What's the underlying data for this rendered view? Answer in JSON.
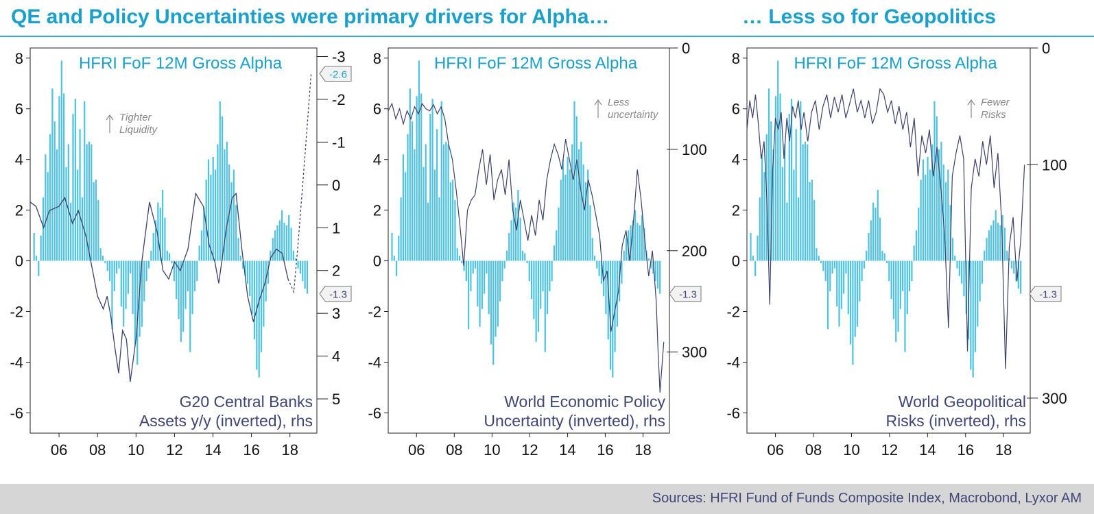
{
  "titles": {
    "left": "QE and Policy Uncertainties were primary drivers for Alpha…",
    "right": "… Less so for Geopolitics"
  },
  "source": "Sources: HFRI Fund of Funds Composite Index, Macrobond, Lyxor AM",
  "colors": {
    "bar": "#4cc3e2",
    "line": "#3b3f6b",
    "title": "#1aa0cc",
    "text": "#3f4575"
  },
  "chart_data": [
    {
      "type": "bar+line",
      "title": "HFRI FoF 12M Gross Alpha",
      "line_label_1": "G20 Central Banks",
      "line_label_2": "Assets y/y (inverted), rhs",
      "annotation_1": "Tighter",
      "annotation_2": "Liquidity",
      "x_ticks": [
        "06",
        "08",
        "10",
        "12",
        "14",
        "16",
        "18"
      ],
      "x_range": [
        2005.0,
        2019.9
      ],
      "y_left": {
        "range": [
          -6.8,
          8.4
        ],
        "ticks": [
          "8",
          "6",
          "4",
          "2",
          "0",
          "-2",
          "-4",
          "-6"
        ]
      },
      "y_right": {
        "range": [
          -3.2,
          5.8
        ],
        "inverted": true,
        "ticks": [
          "-3",
          "-2",
          "-1",
          "0",
          "1",
          "2",
          "3",
          "4",
          "5"
        ]
      },
      "callouts": [
        {
          "label": "-2.6",
          "axis": "right",
          "value": -2.6,
          "color": "#1aa0cc"
        },
        {
          "label": "-1.3",
          "axis": "left",
          "value": -1.3,
          "color": "#3f4575"
        }
      ],
      "line_dashed_from": 2018.4,
      "line_points": [
        [
          2005.0,
          0.4
        ],
        [
          2005.3,
          0.5
        ],
        [
          2005.7,
          1.0
        ],
        [
          2006.0,
          0.6
        ],
        [
          2006.5,
          0.5
        ],
        [
          2006.8,
          0.3
        ],
        [
          2007.2,
          0.9
        ],
        [
          2007.5,
          0.6
        ],
        [
          2007.9,
          1.2
        ],
        [
          2008.2,
          1.9
        ],
        [
          2008.5,
          2.6
        ],
        [
          2008.8,
          2.9
        ],
        [
          2009.0,
          2.6
        ],
        [
          2009.2,
          3.1
        ],
        [
          2009.4,
          3.8
        ],
        [
          2009.6,
          4.4
        ],
        [
          2009.8,
          3.4
        ],
        [
          2010.0,
          3.6
        ],
        [
          2010.2,
          4.6
        ],
        [
          2010.5,
          3.6
        ],
        [
          2010.8,
          1.8
        ],
        [
          2011.2,
          0.4
        ],
        [
          2011.6,
          1.1
        ],
        [
          2011.9,
          2.0
        ],
        [
          2012.2,
          2.2
        ],
        [
          2012.5,
          1.8
        ],
        [
          2012.8,
          2.0
        ],
        [
          2013.2,
          1.5
        ],
        [
          2013.6,
          0.2
        ],
        [
          2014.0,
          0.5
        ],
        [
          2014.3,
          1.4
        ],
        [
          2014.6,
          1.8
        ],
        [
          2014.8,
          2.3
        ],
        [
          2015.2,
          1.0
        ],
        [
          2015.5,
          0.3
        ],
        [
          2015.7,
          0.2
        ],
        [
          2016.0,
          1.5
        ],
        [
          2016.3,
          2.6
        ],
        [
          2016.6,
          3.2
        ],
        [
          2016.9,
          2.7
        ],
        [
          2017.2,
          2.3
        ],
        [
          2017.5,
          1.7
        ],
        [
          2017.8,
          1.5
        ],
        [
          2018.1,
          1.6
        ],
        [
          2018.4,
          2.2
        ],
        [
          2018.7,
          2.5
        ],
        [
          2018.9,
          1.5
        ],
        [
          2019.3,
          -0.8
        ],
        [
          2019.6,
          -2.6
        ]
      ],
      "bar_values": [
        1.1,
        0.2,
        -0.6,
        1.0,
        2.5,
        4.2,
        3.5,
        5.0,
        6.8,
        5.5,
        4.4,
        6.5,
        7.9,
        6.6,
        3.7,
        4.6,
        2.3,
        5.8,
        6.4,
        3.6,
        5.2,
        2.5,
        6.3,
        4.6,
        4.7,
        4.6,
        3.1,
        3.2,
        2.4,
        0.5,
        0.2,
        -0.1,
        -0.4,
        -0.8,
        -2.7,
        -1.2,
        -0.5,
        -0.3,
        -1.8,
        -2.6,
        -1.9,
        -1.3,
        -0.5,
        -2.1,
        -3.3,
        -4.1,
        -3.0,
        -2.6,
        -1.6,
        -0.8,
        -0.3,
        0.4,
        1.1,
        1.6,
        2.3,
        2.1,
        2.8,
        1.7,
        0.4,
        0.3,
        -0.1,
        -0.8,
        -1.5,
        -2.3,
        -3.2,
        -2.8,
        -1.9,
        -1.2,
        -3.6,
        -2.1,
        -1.2,
        -0.8,
        0.6,
        1.2,
        2.1,
        3.2,
        4.0,
        3.4,
        4.1,
        3.6,
        4.6,
        6.3,
        5.7,
        4.4,
        4.7,
        3.8,
        3.1,
        3.6,
        2.2,
        0.9,
        0.2,
        -0.3,
        -0.6,
        -0.9,
        -1.4,
        -2.1,
        -3.1,
        -4.3,
        -4.6,
        -3.6,
        -2.6,
        -1.6,
        -0.9,
        0.4,
        0.9,
        1.2,
        1.4,
        1.6,
        2.0,
        1.5,
        1.4,
        1.8,
        1.3,
        0.4,
        0.1,
        -0.3,
        -0.5,
        -0.8,
        -1.1,
        -1.3
      ]
    },
    {
      "type": "bar+line",
      "title": "HFRI FoF 12M Gross Alpha",
      "line_label_1": "World Economic Policy",
      "line_label_2": "Uncertainty (inverted), rhs",
      "annotation_1": "Less",
      "annotation_2": "uncertainty",
      "x_ticks": [
        "06",
        "08",
        "10",
        "12",
        "14",
        "16",
        "18"
      ],
      "x_range": [
        2005.0,
        2019.9
      ],
      "y_left": {
        "range": [
          -6.8,
          8.4
        ],
        "ticks": [
          "8",
          "6",
          "4",
          "2",
          "0",
          "-2",
          "-4",
          "-6"
        ]
      },
      "y_right": {
        "range": [
          0,
          380
        ],
        "inverted": true,
        "ticks": [
          "0",
          "100",
          "200",
          "300"
        ]
      },
      "callouts": [
        {
          "label": "-1.3",
          "axis": "left",
          "value": -1.3,
          "color": "#3f4575"
        }
      ],
      "line_points": [
        [
          2005.0,
          62
        ],
        [
          2005.2,
          55
        ],
        [
          2005.4,
          70
        ],
        [
          2005.6,
          60
        ],
        [
          2005.8,
          75
        ],
        [
          2006.0,
          62
        ],
        [
          2006.2,
          70
        ],
        [
          2006.4,
          58
        ],
        [
          2006.6,
          65
        ],
        [
          2006.8,
          55
        ],
        [
          2007.0,
          60
        ],
        [
          2007.2,
          62
        ],
        [
          2007.4,
          56
        ],
        [
          2007.6,
          65
        ],
        [
          2007.8,
          58
        ],
        [
          2008.0,
          70
        ],
        [
          2008.2,
          95
        ],
        [
          2008.4,
          110
        ],
        [
          2008.6,
          140
        ],
        [
          2008.8,
          175
        ],
        [
          2009.0,
          215
        ],
        [
          2009.2,
          160
        ],
        [
          2009.4,
          150
        ],
        [
          2009.6,
          145
        ],
        [
          2009.8,
          120
        ],
        [
          2010.0,
          100
        ],
        [
          2010.2,
          135
        ],
        [
          2010.4,
          105
        ],
        [
          2010.6,
          150
        ],
        [
          2010.8,
          130
        ],
        [
          2011.0,
          120
        ],
        [
          2011.2,
          145
        ],
        [
          2011.4,
          110
        ],
        [
          2011.6,
          160
        ],
        [
          2011.8,
          180
        ],
        [
          2012.0,
          150
        ],
        [
          2012.2,
          170
        ],
        [
          2012.4,
          190
        ],
        [
          2012.6,
          165
        ],
        [
          2012.8,
          185
        ],
        [
          2013.0,
          150
        ],
        [
          2013.2,
          170
        ],
        [
          2013.4,
          130
        ],
        [
          2013.6,
          110
        ],
        [
          2013.8,
          95
        ],
        [
          2014.0,
          105
        ],
        [
          2014.2,
          120
        ],
        [
          2014.4,
          90
        ],
        [
          2014.6,
          110
        ],
        [
          2014.8,
          130
        ],
        [
          2015.0,
          110
        ],
        [
          2015.2,
          140
        ],
        [
          2015.4,
          160
        ],
        [
          2015.6,
          130
        ],
        [
          2015.8,
          145
        ],
        [
          2016.0,
          165
        ],
        [
          2016.2,
          185
        ],
        [
          2016.4,
          230
        ],
        [
          2016.6,
          220
        ],
        [
          2016.8,
          280
        ],
        [
          2017.0,
          260
        ],
        [
          2017.2,
          240
        ],
        [
          2017.4,
          195
        ],
        [
          2017.6,
          180
        ],
        [
          2017.8,
          210
        ],
        [
          2018.0,
          170
        ],
        [
          2018.2,
          120
        ],
        [
          2018.4,
          150
        ],
        [
          2018.6,
          190
        ],
        [
          2018.8,
          225
        ],
        [
          2019.0,
          200
        ],
        [
          2019.2,
          250
        ],
        [
          2019.3,
          300
        ],
        [
          2019.4,
          340
        ],
        [
          2019.6,
          290
        ]
      ],
      "bar_values": [
        1.1,
        0.2,
        -0.6,
        1.0,
        2.5,
        4.2,
        3.5,
        5.0,
        6.8,
        5.5,
        4.4,
        6.5,
        7.9,
        6.6,
        3.7,
        4.6,
        2.3,
        5.8,
        6.4,
        3.6,
        5.2,
        2.5,
        6.3,
        4.6,
        4.7,
        4.6,
        3.1,
        3.2,
        2.4,
        0.5,
        0.2,
        -0.1,
        -0.4,
        -0.8,
        -2.7,
        -1.2,
        -0.5,
        -0.3,
        -1.8,
        -2.6,
        -1.9,
        -1.3,
        -0.5,
        -2.1,
        -3.3,
        -4.1,
        -3.0,
        -2.6,
        -1.6,
        -0.8,
        -0.3,
        0.4,
        1.1,
        1.6,
        2.3,
        2.1,
        2.8,
        1.7,
        0.4,
        0.3,
        -0.1,
        -0.8,
        -1.5,
        -2.3,
        -3.2,
        -2.8,
        -1.9,
        -1.2,
        -3.6,
        -2.1,
        -1.2,
        -0.8,
        0.6,
        1.2,
        2.1,
        3.2,
        4.0,
        3.4,
        4.1,
        3.6,
        4.6,
        6.3,
        5.7,
        4.4,
        4.7,
        3.8,
        3.1,
        3.6,
        2.2,
        0.9,
        0.2,
        -0.3,
        -0.6,
        -0.9,
        -1.4,
        -2.1,
        -3.1,
        -4.3,
        -4.6,
        -3.6,
        -2.6,
        -1.6,
        -0.9,
        0.4,
        0.9,
        1.2,
        1.4,
        1.6,
        2.0,
        1.5,
        1.4,
        1.8,
        1.3,
        0.4,
        0.1,
        -0.3,
        -0.5,
        -0.8,
        -1.1,
        -1.3
      ]
    },
    {
      "type": "bar+line",
      "title": "HFRI FoF 12M Gross Alpha",
      "line_label_1": "World Geopolitical",
      "line_label_2": "Risks (inverted), rhs",
      "annotation_1": "Fewer",
      "annotation_2": "Risks",
      "x_ticks": [
        "06",
        "08",
        "10",
        "12",
        "14",
        "16",
        "18"
      ],
      "x_range": [
        2005.0,
        2019.9
      ],
      "y_left": {
        "range": [
          -6.8,
          8.4
        ],
        "ticks": [
          "8",
          "6",
          "4",
          "2",
          "0",
          "-2",
          "-4",
          "-6"
        ]
      },
      "y_right": {
        "range": [
          0,
          330
        ],
        "inverted": true,
        "ticks": [
          "0",
          "100",
          "300"
        ]
      },
      "callouts": [
        {
          "label": "-1.3",
          "axis": "left",
          "value": -1.3,
          "color": "#3f4575"
        }
      ],
      "line_points": [
        [
          2005.0,
          70
        ],
        [
          2005.15,
          45
        ],
        [
          2005.3,
          60
        ],
        [
          2005.45,
          40
        ],
        [
          2005.6,
          65
        ],
        [
          2005.75,
          95
        ],
        [
          2005.9,
          80
        ],
        [
          2006.05,
          130
        ],
        [
          2006.2,
          220
        ],
        [
          2006.35,
          105
        ],
        [
          2006.5,
          60
        ],
        [
          2006.65,
          70
        ],
        [
          2006.8,
          55
        ],
        [
          2006.95,
          95
        ],
        [
          2007.1,
          60
        ],
        [
          2007.25,
          80
        ],
        [
          2007.4,
          50
        ],
        [
          2007.55,
          60
        ],
        [
          2007.7,
          45
        ],
        [
          2007.85,
          70
        ],
        [
          2008.0,
          55
        ],
        [
          2008.2,
          80
        ],
        [
          2008.4,
          55
        ],
        [
          2008.6,
          45
        ],
        [
          2008.8,
          70
        ],
        [
          2009.0,
          50
        ],
        [
          2009.2,
          40
        ],
        [
          2009.4,
          60
        ],
        [
          2009.6,
          42
        ],
        [
          2009.8,
          55
        ],
        [
          2010.0,
          40
        ],
        [
          2010.2,
          60
        ],
        [
          2010.4,
          48
        ],
        [
          2010.6,
          35
        ],
        [
          2010.8,
          55
        ],
        [
          2011.0,
          45
        ],
        [
          2011.2,
          60
        ],
        [
          2011.4,
          45
        ],
        [
          2011.6,
          65
        ],
        [
          2011.8,
          55
        ],
        [
          2012.0,
          35
        ],
        [
          2012.2,
          40
        ],
        [
          2012.4,
          55
        ],
        [
          2012.6,
          45
        ],
        [
          2012.8,
          65
        ],
        [
          2013.0,
          50
        ],
        [
          2013.2,
          70
        ],
        [
          2013.4,
          55
        ],
        [
          2013.6,
          85
        ],
        [
          2013.8,
          60
        ],
        [
          2014.0,
          110
        ],
        [
          2014.2,
          75
        ],
        [
          2014.4,
          90
        ],
        [
          2014.6,
          70
        ],
        [
          2014.8,
          110
        ],
        [
          2015.0,
          85
        ],
        [
          2015.2,
          120
        ],
        [
          2015.4,
          160
        ],
        [
          2015.6,
          240
        ],
        [
          2015.8,
          110
        ],
        [
          2016.0,
          90
        ],
        [
          2016.2,
          75
        ],
        [
          2016.4,
          95
        ],
        [
          2016.6,
          260
        ],
        [
          2016.8,
          120
        ],
        [
          2017.0,
          95
        ],
        [
          2017.2,
          110
        ],
        [
          2017.4,
          80
        ],
        [
          2017.6,
          100
        ],
        [
          2017.8,
          75
        ],
        [
          2018.0,
          120
        ],
        [
          2018.2,
          90
        ],
        [
          2018.4,
          150
        ],
        [
          2018.6,
          275
        ],
        [
          2018.8,
          170
        ],
        [
          2019.0,
          145
        ],
        [
          2019.2,
          200
        ],
        [
          2019.4,
          165
        ],
        [
          2019.6,
          100
        ]
      ],
      "bar_values": [
        1.1,
        0.2,
        -0.6,
        1.0,
        2.5,
        4.2,
        3.5,
        5.0,
        6.8,
        5.5,
        4.4,
        6.5,
        7.9,
        6.6,
        3.7,
        4.6,
        2.3,
        5.8,
        6.4,
        3.6,
        5.2,
        2.5,
        6.3,
        4.6,
        4.7,
        4.6,
        3.1,
        3.2,
        2.4,
        0.5,
        0.2,
        -0.1,
        -0.4,
        -0.8,
        -2.7,
        -1.2,
        -0.5,
        -0.3,
        -1.8,
        -2.6,
        -1.9,
        -1.3,
        -0.5,
        -2.1,
        -3.3,
        -4.1,
        -3.0,
        -2.6,
        -1.6,
        -0.8,
        -0.3,
        0.4,
        1.1,
        1.6,
        2.3,
        2.1,
        2.8,
        1.7,
        0.4,
        0.3,
        -0.1,
        -0.8,
        -1.5,
        -2.3,
        -3.2,
        -2.8,
        -1.9,
        -1.2,
        -3.6,
        -2.1,
        -1.2,
        -0.8,
        0.6,
        1.2,
        2.1,
        3.2,
        4.0,
        3.4,
        4.1,
        3.6,
        4.6,
        6.3,
        5.7,
        4.4,
        4.7,
        3.8,
        3.1,
        3.6,
        2.2,
        0.9,
        0.2,
        -0.3,
        -0.6,
        -0.9,
        -1.4,
        -2.1,
        -3.1,
        -4.3,
        -4.6,
        -3.6,
        -2.6,
        -1.6,
        -0.9,
        0.4,
        0.9,
        1.2,
        1.4,
        1.6,
        2.0,
        1.5,
        1.4,
        1.8,
        1.3,
        0.4,
        0.1,
        -0.3,
        -0.5,
        -0.8,
        -1.1,
        -1.3
      ]
    }
  ]
}
